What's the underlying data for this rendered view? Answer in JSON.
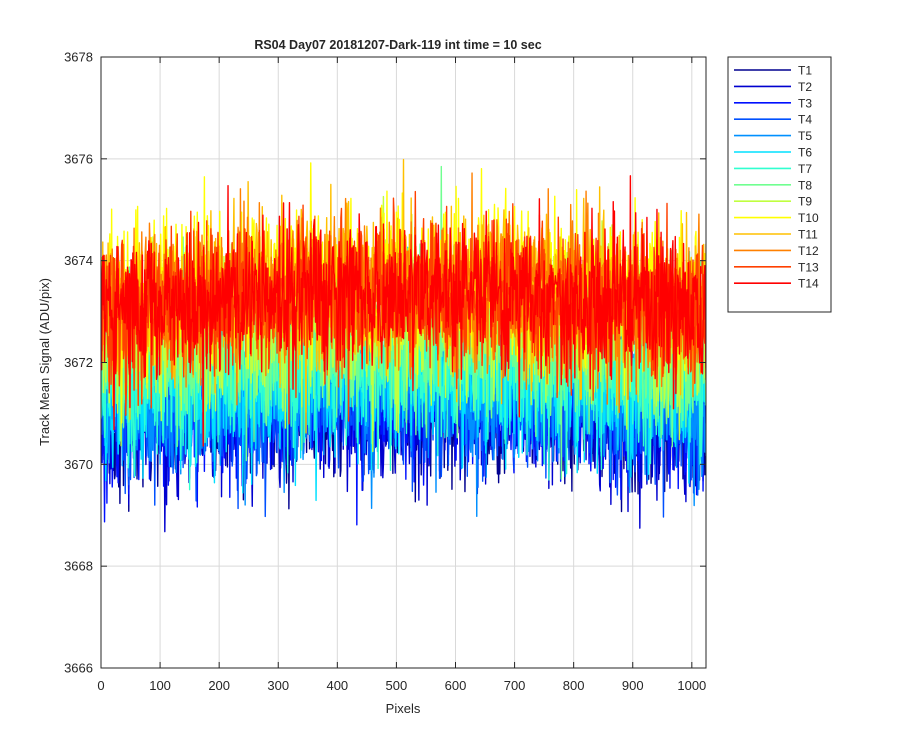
{
  "chart_data": {
    "type": "line",
    "title": "RS04 Day07 20181207-Dark-119 int time = 10 sec",
    "xlabel": "Pixels",
    "ylabel": "Track Mean Signal (ADU/pix)",
    "xlim": [
      0,
      1024
    ],
    "ylim": [
      3666,
      3678
    ],
    "xticks": [
      0,
      100,
      200,
      300,
      400,
      500,
      600,
      700,
      800,
      900,
      1000
    ],
    "yticks": [
      3666,
      3668,
      3670,
      3672,
      3674,
      3676,
      3678
    ],
    "grid": true,
    "legend_position": "outside-top-right",
    "noise_amplitude": 1.0,
    "series": [
      {
        "name": "T1",
        "color": "#00008f",
        "mean": 3670.9
      },
      {
        "name": "T2",
        "color": "#0000cf",
        "mean": 3670.9
      },
      {
        "name": "T3",
        "color": "#0010ff",
        "mean": 3671.0
      },
      {
        "name": "T4",
        "color": "#0050ff",
        "mean": 3671.1
      },
      {
        "name": "T5",
        "color": "#0090ff",
        "mean": 3671.2
      },
      {
        "name": "T6",
        "color": "#00e0ff",
        "mean": 3671.4
      },
      {
        "name": "T7",
        "color": "#30ffd0",
        "mean": 3671.7
      },
      {
        "name": "T8",
        "color": "#70ff90",
        "mean": 3672.1
      },
      {
        "name": "T9",
        "color": "#c0ff40",
        "mean": 3672.5
      },
      {
        "name": "T10",
        "color": "#ffff00",
        "mean": 3673.3
      },
      {
        "name": "T11",
        "color": "#ffc000",
        "mean": 3673.1
      },
      {
        "name": "T12",
        "color": "#ff8000",
        "mean": 3673.0
      },
      {
        "name": "T13",
        "color": "#ff4000",
        "mean": 3673.0
      },
      {
        "name": "T14",
        "color": "#ff0000",
        "mean": 3673.0
      }
    ]
  }
}
